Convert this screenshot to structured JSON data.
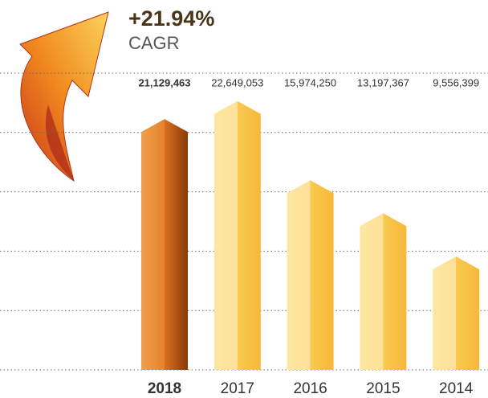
{
  "chart_data": {
    "type": "bar",
    "annotation": "+21.94%",
    "annotation_label": "CAGR",
    "categories": [
      "2018",
      "2017",
      "2016",
      "2015",
      "2014"
    ],
    "values": [
      21129463,
      22649053,
      15974250,
      13197367,
      9556399
    ],
    "value_labels": [
      "21,129,463",
      "22,649,053",
      "15,974,250",
      "13,197,367",
      "9,556,399"
    ],
    "colors": [
      "#d9701e",
      "#f9c94f",
      "#f9c94f",
      "#f9c94f",
      "#f9c94f"
    ],
    "ylim": [
      0,
      25000000
    ],
    "yticks": [
      0,
      5000000,
      10000000,
      15000000,
      20000000,
      25000000
    ],
    "grid": true
  }
}
